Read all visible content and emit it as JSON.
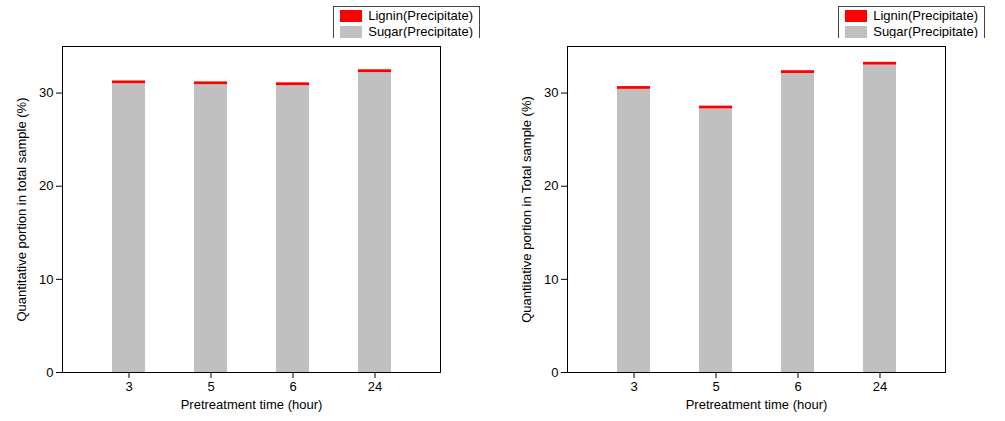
{
  "chart_data": [
    {
      "type": "bar",
      "stacked": true,
      "legend": "top-right",
      "x_label": "Pretreatment time (hour)",
      "y_label": "Quantitative portion in total sample (%)",
      "categories": [
        "3",
        "5",
        "6",
        "24"
      ],
      "series": [
        {
          "name": "Sugar(Precipitate)",
          "color": "#c0c0c0",
          "values": [
            31.0,
            30.9,
            30.8,
            32.2
          ]
        },
        {
          "name": "Lignin(Precipitate)",
          "color": "#ff0000",
          "values": [
            0.3,
            0.3,
            0.3,
            0.3
          ]
        }
      ],
      "ylim": [
        0,
        35
      ],
      "yticks": [
        0,
        10,
        20,
        30
      ]
    },
    {
      "type": "bar",
      "stacked": true,
      "legend": "top-right",
      "x_label": "Pretreatment time (hour)",
      "y_label": "Quantitative portion in Total sample (%)",
      "categories": [
        "3",
        "5",
        "6",
        "24"
      ],
      "series": [
        {
          "name": "Sugar(Precipitate)",
          "color": "#c0c0c0",
          "values": [
            30.4,
            28.3,
            32.1,
            33.0
          ]
        },
        {
          "name": "Lignin(Precipitate)",
          "color": "#ff0000",
          "values": [
            0.3,
            0.3,
            0.3,
            0.3
          ]
        }
      ],
      "ylim": [
        0,
        35
      ],
      "yticks": [
        0,
        10,
        20,
        30
      ]
    }
  ]
}
